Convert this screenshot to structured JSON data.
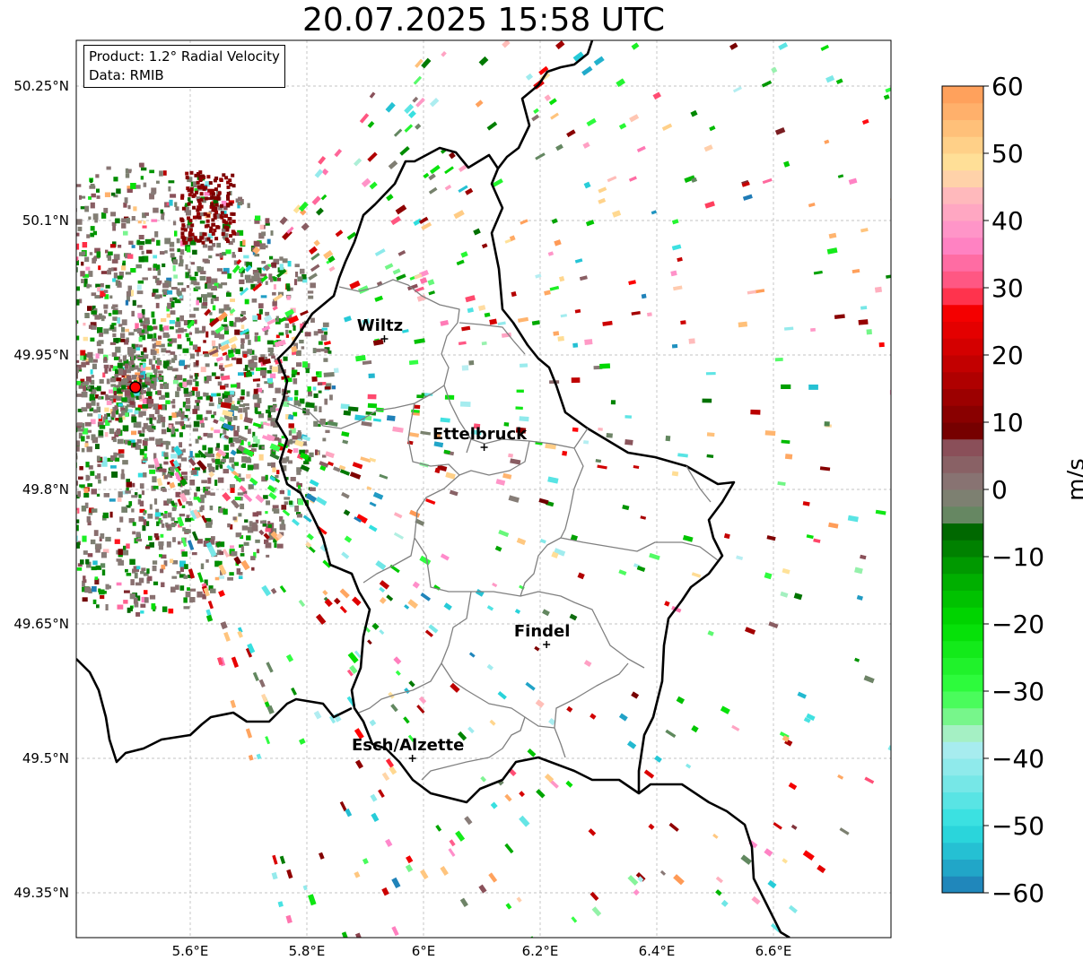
{
  "title": "20.07.2025 15:58 UTC",
  "info": {
    "product": "Product: 1.2° Radial Velocity",
    "data": "Data: RMIB"
  },
  "map": {
    "lon_range": [
      5.4,
      6.8
    ],
    "lat_range": [
      49.3,
      50.3
    ],
    "lon_ticks": [
      {
        "v": 5.6,
        "label": "5.6°E"
      },
      {
        "v": 5.8,
        "label": "5.8°E"
      },
      {
        "v": 6.0,
        "label": "6°E"
      },
      {
        "v": 6.2,
        "label": "6.2°E"
      },
      {
        "v": 6.4,
        "label": "6.4°E"
      },
      {
        "v": 6.6,
        "label": "6.6°E"
      }
    ],
    "lat_ticks": [
      {
        "v": 50.25,
        "label": "50.25°N"
      },
      {
        "v": 50.1,
        "label": "50.1°N"
      },
      {
        "v": 49.95,
        "label": "49.95°N"
      },
      {
        "v": 49.8,
        "label": "49.8°N"
      },
      {
        "v": 49.65,
        "label": "49.65°N"
      },
      {
        "v": 49.5,
        "label": "49.5°N"
      },
      {
        "v": 49.35,
        "label": "49.35°N"
      }
    ],
    "radar_site": {
      "lon": 5.506,
      "lat": 49.914
    },
    "cities": [
      {
        "name": "Wiltz",
        "lon": 5.933,
        "lat": 49.968
      },
      {
        "name": "Ettelbruck",
        "lon": 6.104,
        "lat": 49.847
      },
      {
        "name": "Findel",
        "lon": 6.211,
        "lat": 49.627
      },
      {
        "name": "Esch/Alzette",
        "lon": 5.981,
        "lat": 49.5
      }
    ]
  },
  "colorbar": {
    "label": "m/s",
    "vmin": -60,
    "vmax": 60,
    "ticks": [
      {
        "v": 60,
        "label": "60"
      },
      {
        "v": 50,
        "label": "50"
      },
      {
        "v": 40,
        "label": "40"
      },
      {
        "v": 30,
        "label": "30"
      },
      {
        "v": 20,
        "label": "20"
      },
      {
        "v": 10,
        "label": "10"
      },
      {
        "v": 0,
        "label": "0"
      },
      {
        "v": -10,
        "label": "−10"
      },
      {
        "v": -20,
        "label": "−20"
      },
      {
        "v": -30,
        "label": "−30"
      },
      {
        "v": -40,
        "label": "−40"
      },
      {
        "v": -50,
        "label": "−50"
      },
      {
        "v": -60,
        "label": "−60"
      }
    ],
    "stops": [
      {
        "v": -60,
        "c": "#1f77b4"
      },
      {
        "v": -55,
        "c": "#22b6cf"
      },
      {
        "v": -50,
        "c": "#2cdfdf"
      },
      {
        "v": -44,
        "c": "#74e7e7"
      },
      {
        "v": -37,
        "c": "#b8eef2"
      },
      {
        "v": -36,
        "c": "#9ff0b5"
      },
      {
        "v": -30,
        "c": "#33ff44"
      },
      {
        "v": -20,
        "c": "#00dd00"
      },
      {
        "v": -13,
        "c": "#00aa00"
      },
      {
        "v": -6,
        "c": "#006600"
      },
      {
        "v": -5,
        "c": "#5b8a5b"
      },
      {
        "v": 0,
        "c": "#887c78"
      },
      {
        "v": 7,
        "c": "#8a4a55"
      },
      {
        "v": 8,
        "c": "#700000"
      },
      {
        "v": 20,
        "c": "#cc0000"
      },
      {
        "v": 28,
        "c": "#ff0000"
      },
      {
        "v": 29,
        "c": "#ff4466"
      },
      {
        "v": 37,
        "c": "#ff88cc"
      },
      {
        "v": 44,
        "c": "#ffbbbb"
      },
      {
        "v": 48,
        "c": "#ffe49b"
      },
      {
        "v": 60,
        "c": "#ff9955"
      }
    ]
  }
}
